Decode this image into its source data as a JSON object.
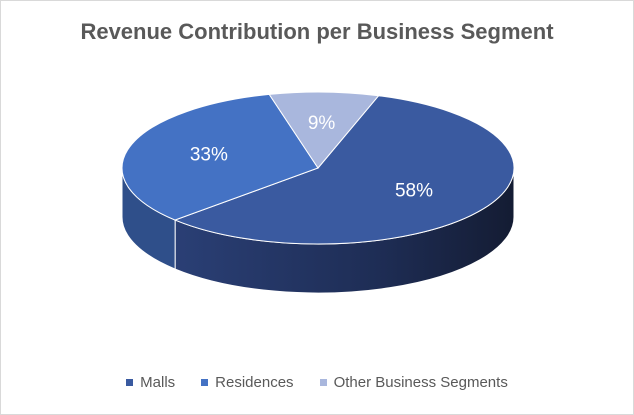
{
  "chart_data": {
    "type": "pie",
    "title": "Revenue Contribution per Business Segment",
    "categories": [
      "Malls",
      "Residences",
      "Other Business Segments"
    ],
    "values": [
      58,
      33,
      9
    ],
    "labels": [
      "58%",
      "33%",
      "9%"
    ],
    "colors": [
      "#3a5aa0",
      "#4472c4",
      "#a9b7dd"
    ],
    "side_colors": [
      "#24345c",
      "#2f4f8a",
      "#5a6580"
    ],
    "legend_position": "bottom"
  }
}
